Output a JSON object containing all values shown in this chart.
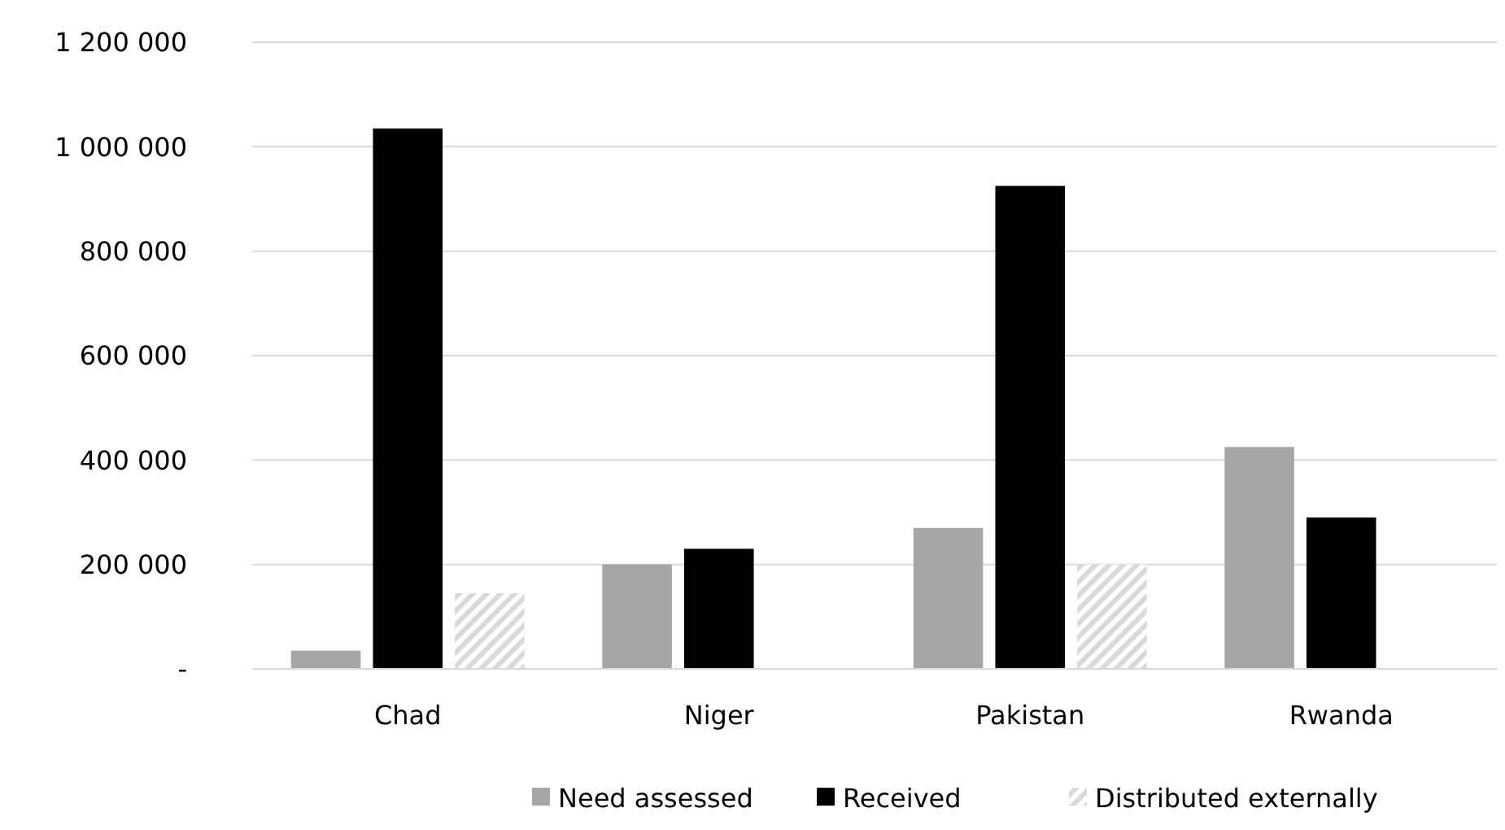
{
  "chart_data": {
    "type": "bar",
    "categories": [
      "Chad",
      "Niger",
      "Pakistan",
      "Rwanda"
    ],
    "series": [
      {
        "name": "Need assessed",
        "color": "#a6a6a6",
        "values": [
          35000,
          200000,
          270000,
          425000
        ]
      },
      {
        "name": "Received",
        "color": "#000000",
        "values": [
          1035000,
          230000,
          925000,
          290000
        ]
      },
      {
        "name": "Distributed externally",
        "color": "#d9d9d9",
        "values": [
          145000,
          0,
          200000,
          0
        ]
      }
    ],
    "ylim": [
      0,
      1200000
    ],
    "yticks": [
      {
        "value": 0,
        "label": "-"
      },
      {
        "value": 200000,
        "label": "200 000"
      },
      {
        "value": 400000,
        "label": "400 000"
      },
      {
        "value": 600000,
        "label": "600 000"
      },
      {
        "value": 800000,
        "label": "800 000"
      },
      {
        "value": 1000000,
        "label": "1 000 000"
      },
      {
        "value": 1200000,
        "label": "1 200 000"
      }
    ],
    "grid": "y",
    "legend": "bottom"
  }
}
